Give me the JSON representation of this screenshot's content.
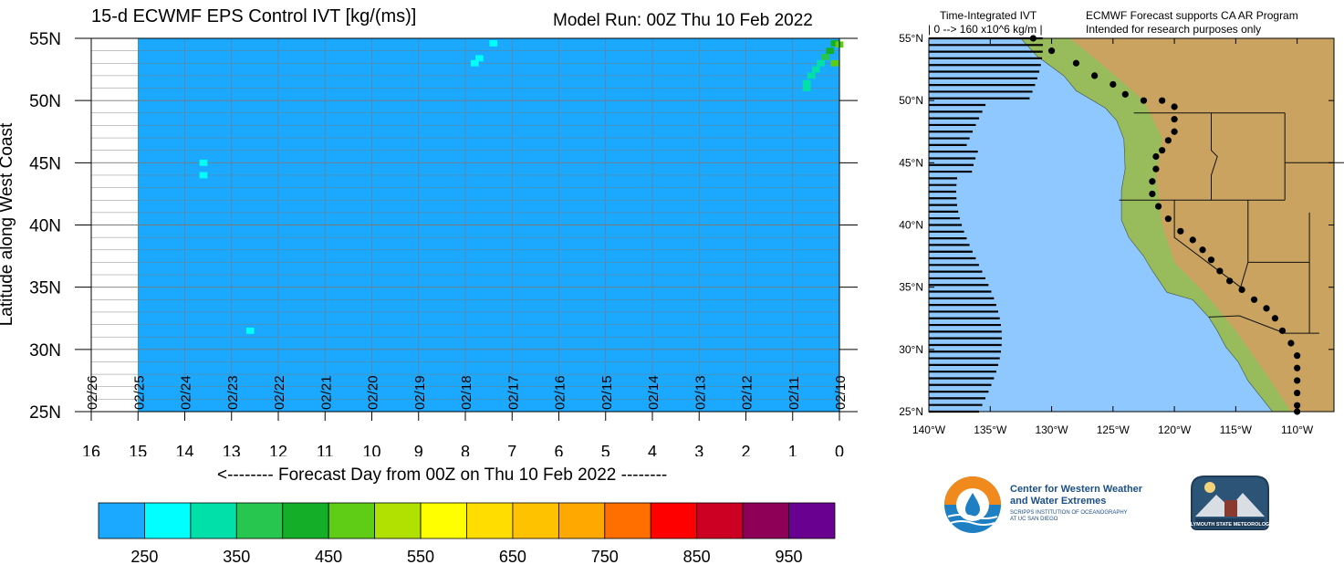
{
  "header": {
    "title": "15-d ECWMF EPS Control IVT [kg/(ms)]",
    "model_run": "Model Run: 00Z Thu 10 Feb 2022"
  },
  "chart_data": [
    {
      "type": "heatmap",
      "title": "15-d ECWMF EPS Control IVT [kg/(ms)]",
      "xlabel": "<-------- Forecast Day from 00Z on Thu 10 Feb 2022 --------",
      "ylabel": "Latitude along West Coast",
      "x_ticks": [
        "16",
        "15",
        "14",
        "13",
        "12",
        "11",
        "10",
        "9",
        "8",
        "7",
        "6",
        "5",
        "4",
        "3",
        "2",
        "1",
        "0"
      ],
      "xlim": [
        16,
        0
      ],
      "date_labels": [
        "02/26",
        "02/25",
        "02/24",
        "02/23",
        "02/22",
        "02/21",
        "02/20",
        "02/19",
        "02/18",
        "02/17",
        "02/16",
        "02/15",
        "02/14",
        "02/13",
        "02/12",
        "02/11",
        "02/10"
      ],
      "y_ticks": [
        "25N",
        "30N",
        "35N",
        "40N",
        "45N",
        "50N",
        "55N"
      ],
      "ylim": [
        25,
        55
      ],
      "data_extent_days": [
        0,
        15
      ],
      "background_color": "#1aa9ff",
      "cells": [
        {
          "day": 7.4,
          "lat": 54.6,
          "color": "#00ffff"
        },
        {
          "day": 7.7,
          "lat": 53.4,
          "color": "#00ffff"
        },
        {
          "day": 7.8,
          "lat": 53.0,
          "color": "#00ffff"
        },
        {
          "day": 13.6,
          "lat": 45.0,
          "color": "#00ffff"
        },
        {
          "day": 13.6,
          "lat": 44.0,
          "color": "#00ffff"
        },
        {
          "day": 12.6,
          "lat": 31.5,
          "color": "#00ffff"
        },
        {
          "day": 0.1,
          "lat": 54.6,
          "color": "#15ae28"
        },
        {
          "day": 0.2,
          "lat": 54.0,
          "color": "#15ae28"
        },
        {
          "day": 0.3,
          "lat": 53.5,
          "color": "#27c64e"
        },
        {
          "day": 0.1,
          "lat": 53.0,
          "color": "#5fcc15"
        },
        {
          "day": 0.4,
          "lat": 53.0,
          "color": "#00e0a8"
        },
        {
          "day": 0.5,
          "lat": 52.5,
          "color": "#00e0a8"
        },
        {
          "day": 0.6,
          "lat": 52.0,
          "color": "#00e0a8"
        },
        {
          "day": 0.7,
          "lat": 51.4,
          "color": "#00e0a8"
        },
        {
          "day": 0.7,
          "lat": 51.0,
          "color": "#00e0a8"
        },
        {
          "day": 0.0,
          "lat": 54.5,
          "color": "#5fcc15"
        }
      ]
    },
    {
      "type": "legend-colorbar",
      "labels": [
        "250",
        "350",
        "450",
        "550",
        "650",
        "750",
        "850",
        "950"
      ],
      "colors": [
        "#1aa9ff",
        "#00ffff",
        "#00e0a8",
        "#27c64e",
        "#15ae28",
        "#5fcc15",
        "#b1e100",
        "#ffff00",
        "#ffdd00",
        "#ffc200",
        "#ffa800",
        "#ff6f00",
        "#ff0000",
        "#cb0023",
        "#8e0057",
        "#6a0090"
      ]
    },
    {
      "type": "map",
      "title_line1": "Time-Integrated IVT",
      "title_line2": "| 0 --> 160 x10^6 kg/m    |",
      "note_line1": "ECMWF Forecast supports CA AR Program",
      "note_line2": "Intended for research purposes only",
      "lon_ticks": [
        "140°W",
        "135°W",
        "130°W",
        "125°W",
        "120°W",
        "115°W",
        "110°W"
      ],
      "lat_ticks": [
        "25°N",
        "30°N",
        "35°N",
        "40°N",
        "45°N",
        "50°N",
        "55°N"
      ],
      "lon_range": [
        -140,
        -107
      ],
      "lat_range": [
        25,
        55
      ],
      "ocean_color": "#8ec8ff",
      "land_color": "#c9a35f"
    }
  ],
  "logos": {
    "cw3e_line1": "Center for Western Weather",
    "cw3e_line2": "and Water Extremes",
    "cw3e_sub1": "SCRIPPS INSTITUTION OF OCEANOGRAPHY",
    "cw3e_sub2": "AT UC SAN DIEGO",
    "psu_text": "PLYMOUTH STATE METEOROLOGY"
  }
}
